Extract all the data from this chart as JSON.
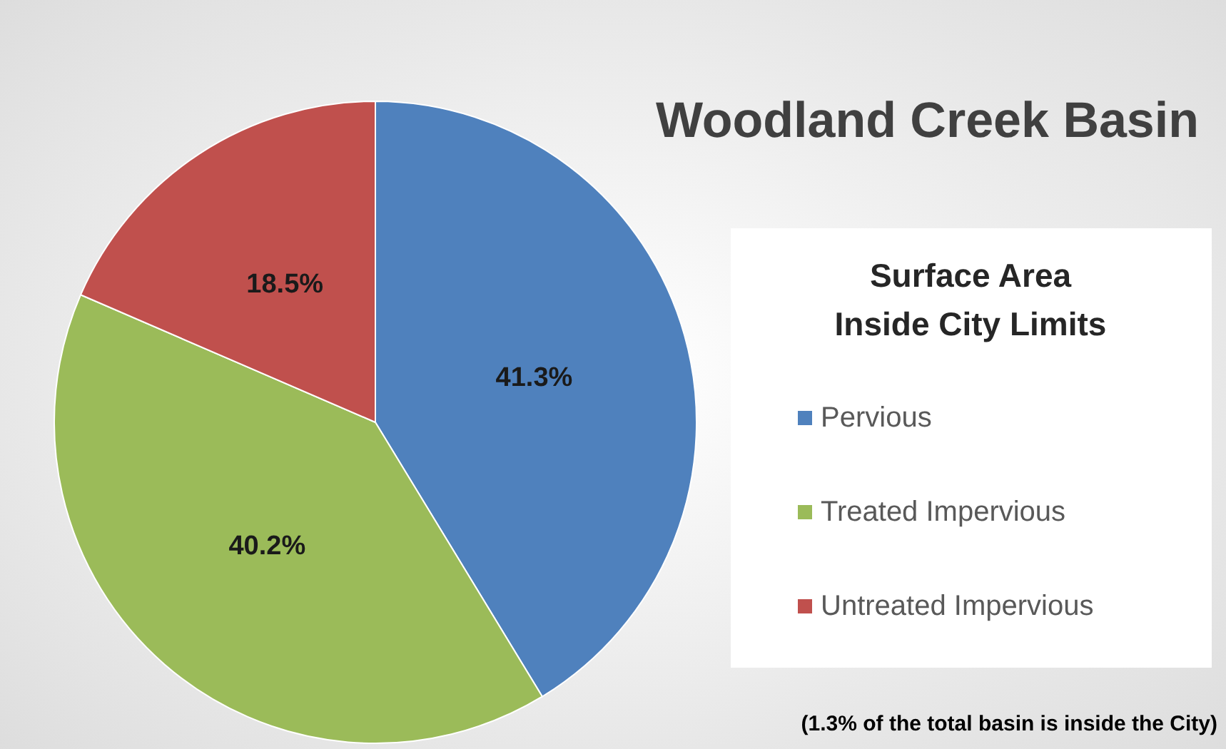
{
  "chart_data": {
    "type": "pie",
    "title": "Woodland Creek Basin",
    "legend_title": "Surface Area\nInside City Limits",
    "categories": [
      "Pervious",
      "Treated Impervious",
      "Untreated Impervious"
    ],
    "values": [
      41.3,
      40.2,
      18.5
    ],
    "colors": [
      "#4f81bd",
      "#9bbb59",
      "#c0504d"
    ],
    "value_labels": [
      "41.3%",
      "40.2%",
      "18.5%"
    ],
    "legend": "right",
    "annotations": [
      "(1.3% of the total basin is inside the City)"
    ]
  }
}
